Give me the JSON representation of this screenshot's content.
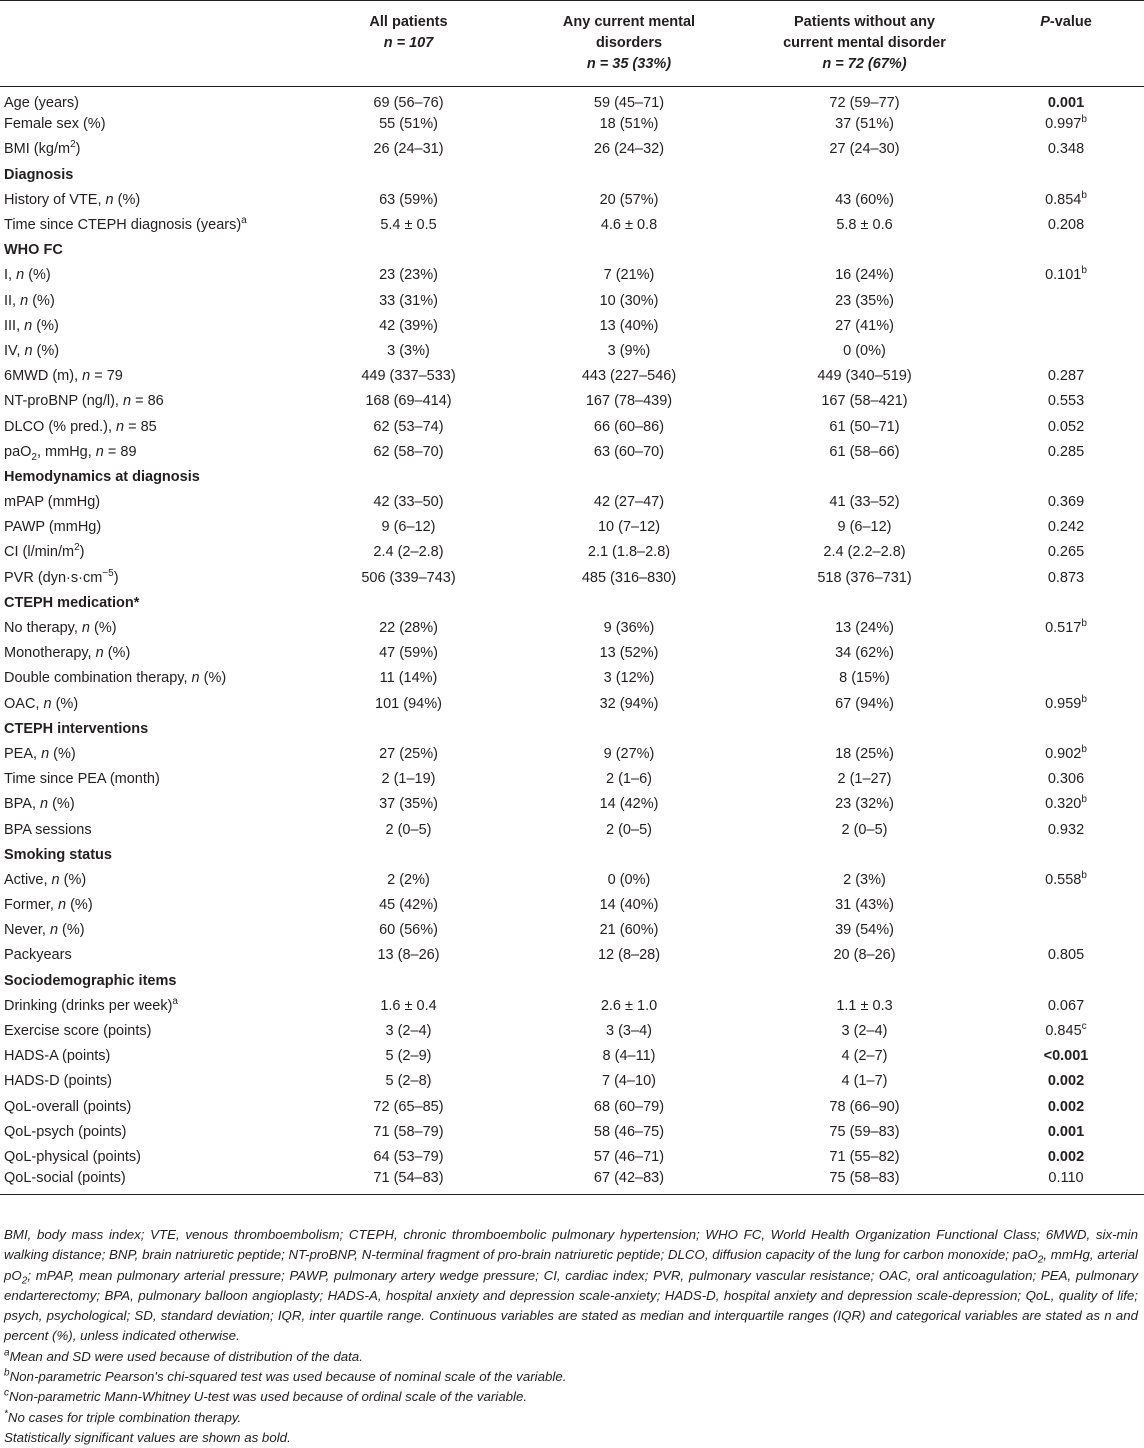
{
  "header": {
    "col1_line1": "All patients",
    "col1_line2": "n = 107",
    "col2_line1": "Any current mental",
    "col2_line2": "disorders",
    "col2_line3": "n = 35 (33%)",
    "col3_line1": "Patients without any",
    "col3_line2": "current mental disorder",
    "col3_line3": "n = 72 (67%)",
    "col4_p": "P",
    "col4_rest": "-value"
  },
  "rows": [
    {
      "label": "Age (years)",
      "all": "69 (56–76)",
      "any": "59 (45–71)",
      "without": "72 (59–77)",
      "p": "0.001",
      "p_bold": true
    },
    {
      "label": "Female sex (%)",
      "all": "55 (51%)",
      "any": "18 (51%)",
      "without": "37 (51%)",
      "p": "0.997",
      "p_sup": "b"
    },
    {
      "label": "BMI (kg/m",
      "label_sup": "2",
      "label_tail": ")",
      "all": "26 (24–31)",
      "any": "26 (24–32)",
      "without": "27 (24–30)",
      "p": "0.348"
    },
    {
      "label": "Diagnosis",
      "section": true
    },
    {
      "label": "History of VTE, ",
      "label_it": "n",
      "label_tail": " (%)",
      "all": "63 (59%)",
      "any": "20 (57%)",
      "without": "43 (60%)",
      "p": "0.854",
      "p_sup": "b"
    },
    {
      "label": "Time since CTEPH diagnosis (years)",
      "label_sup": "a",
      "all": "5.4 ± 0.5",
      "any": "4.6 ± 0.8",
      "without": "5.8 ± 0.6",
      "p": "0.208"
    },
    {
      "label": "WHO FC",
      "section": true
    },
    {
      "label": "I, ",
      "label_it": "n",
      "label_tail": " (%)",
      "all": "23 (23%)",
      "any": "7 (21%)",
      "without": "16 (24%)",
      "p": "0.101",
      "p_sup": "b"
    },
    {
      "label": "II, ",
      "label_it": "n",
      "label_tail": " (%)",
      "all": "33 (31%)",
      "any": "10 (30%)",
      "without": "23 (35%)",
      "p": ""
    },
    {
      "label": "III, ",
      "label_it": "n",
      "label_tail": " (%)",
      "all": "42 (39%)",
      "any": "13 (40%)",
      "without": "27 (41%)",
      "p": ""
    },
    {
      "label": "IV, ",
      "label_it": "n",
      "label_tail": " (%)",
      "all": "3 (3%)",
      "any": "3 (9%)",
      "without": "0 (0%)",
      "p": ""
    },
    {
      "label": "6MWD (m), ",
      "label_it": "n",
      "label_tail": " = 79",
      "all": "449 (337–533)",
      "any": "443 (227–546)",
      "without": "449 (340–519)",
      "p": "0.287"
    },
    {
      "label": "NT-proBNP (ng/l), ",
      "label_it": "n",
      "label_tail": " = 86",
      "all": "168 (69–414)",
      "any": "167 (78–439)",
      "without": "167 (58–421)",
      "p": "0.553"
    },
    {
      "label": "DLCO (% pred.), ",
      "label_it": "n",
      "label_tail": " = 85",
      "all": "62 (53–74)",
      "any": "66 (60–86)",
      "without": "61 (50–71)",
      "p": "0.052"
    },
    {
      "label": "paO",
      "label_sub": "2",
      "label_tail": ", mmHg, ",
      "label_it2": "n",
      "label_tail2": " = 89",
      "all": "62 (58–70)",
      "any": "63 (60–70)",
      "without": "61 (58–66)",
      "p": "0.285"
    },
    {
      "label": "Hemodynamics at diagnosis",
      "section": true
    },
    {
      "label": "mPAP (mmHg)",
      "all": "42 (33–50)",
      "any": "42 (27–47)",
      "without": "41 (33–52)",
      "p": "0.369"
    },
    {
      "label": "PAWP (mmHg)",
      "all": "9 (6–12)",
      "any": "10 (7–12)",
      "without": "9 (6–12)",
      "p": "0.242"
    },
    {
      "label": "CI (l/min/m",
      "label_sup": "2",
      "label_tail": ")",
      "all": "2.4 (2–2.8)",
      "any": "2.1 (1.8–2.8)",
      "without": "2.4 (2.2–2.8)",
      "p": "0.265"
    },
    {
      "label": "PVR (dyn·s·cm",
      "label_sup": "−5",
      "label_tail": ")",
      "all": "506 (339–743)",
      "any": "485 (316–830)",
      "without": "518 (376–731)",
      "p": "0.873"
    },
    {
      "label": "CTEPH medication*",
      "section": true
    },
    {
      "label": "No therapy, ",
      "label_it": "n",
      "label_tail": " (%)",
      "all": "22 (28%)",
      "any": "9 (36%)",
      "without": "13 (24%)",
      "p": "0.517",
      "p_sup": "b"
    },
    {
      "label": "Monotherapy, ",
      "label_it": "n",
      "label_tail": " (%)",
      "all": "47 (59%)",
      "any": "13 (52%)",
      "without": "34 (62%)",
      "p": ""
    },
    {
      "label": "Double combination therapy, ",
      "label_it": "n",
      "label_tail": " (%)",
      "all": "11 (14%)",
      "any": "3 (12%)",
      "without": "8 (15%)",
      "p": ""
    },
    {
      "label": "OAC, ",
      "label_it": "n",
      "label_tail": " (%)",
      "all": "101 (94%)",
      "any": "32 (94%)",
      "without": "67 (94%)",
      "p": "0.959",
      "p_sup": "b"
    },
    {
      "label": "CTEPH interventions",
      "section": true
    },
    {
      "label": "PEA, ",
      "label_it": "n",
      "label_tail": " (%)",
      "all": "27 (25%)",
      "any": "9 (27%)",
      "without": "18 (25%)",
      "p": "0.902",
      "p_sup": "b"
    },
    {
      "label": "Time since PEA (month)",
      "all": "2 (1–19)",
      "any": "2 (1–6)",
      "without": "2 (1–27)",
      "p": "0.306"
    },
    {
      "label": "BPA, ",
      "label_it": "n",
      "label_tail": " (%)",
      "all": "37 (35%)",
      "any": "14 (42%)",
      "without": "23 (32%)",
      "p": "0.320",
      "p_sup": "b"
    },
    {
      "label": "BPA sessions",
      "all": "2 (0–5)",
      "any": "2 (0–5)",
      "without": "2 (0–5)",
      "p": "0.932"
    },
    {
      "label": "Smoking status",
      "section": true
    },
    {
      "label": "Active, ",
      "label_it": "n",
      "label_tail": " (%)",
      "all": "2 (2%)",
      "any": "0 (0%)",
      "without": "2 (3%)",
      "p": "0.558",
      "p_sup": "b"
    },
    {
      "label": "Former, ",
      "label_it": "n",
      "label_tail": " (%)",
      "all": "45 (42%)",
      "any": "14 (40%)",
      "without": "31 (43%)",
      "p": ""
    },
    {
      "label": "Never, ",
      "label_it": "n",
      "label_tail": " (%)",
      "all": "60 (56%)",
      "any": "21 (60%)",
      "without": "39 (54%)",
      "p": ""
    },
    {
      "label": "Packyears",
      "all": "13 (8–26)",
      "any": "12 (8–28)",
      "without": "20 (8–26)",
      "p": "0.805"
    },
    {
      "label": "Sociodemographic items",
      "section": true
    },
    {
      "label": "Drinking (drinks per week)",
      "label_sup": "a",
      "all": "1.6 ± 0.4",
      "any": "2.6 ± 1.0",
      "without": "1.1 ± 0.3",
      "p": "0.067"
    },
    {
      "label": "Exercise score (points)",
      "all": "3 (2–4)",
      "any": "3 (3–4)",
      "without": "3 (2–4)",
      "p": "0.845",
      "p_sup": "c"
    },
    {
      "label": "HADS-A (points)",
      "all": "5 (2–9)",
      "any": "8 (4–11)",
      "without": "4 (2–7)",
      "p": "<0.001",
      "p_bold": true
    },
    {
      "label": "HADS-D (points)",
      "all": "5 (2–8)",
      "any": "7 (4–10)",
      "without": "4 (1–7)",
      "p": "0.002",
      "p_bold": true
    },
    {
      "label": "QoL-overall (points)",
      "all": "72 (65–85)",
      "any": "68 (60–79)",
      "without": "78 (66–90)",
      "p": "0.002",
      "p_bold": true
    },
    {
      "label": "QoL-psych (points)",
      "all": "71 (58–79)",
      "any": "58 (46–75)",
      "without": "75 (59–83)",
      "p": "0.001",
      "p_bold": true
    },
    {
      "label": "QoL-physical (points)",
      "all": "64 (53–79)",
      "any": "57 (46–71)",
      "without": "71 (55–82)",
      "p": "0.002",
      "p_bold": true
    },
    {
      "label": "QoL-social (points)",
      "all": "71 (54–83)",
      "any": "67 (42–83)",
      "without": "75 (58–83)",
      "p": "0.110"
    }
  ],
  "footnotes": {
    "abbr_1": "BMI, body mass index; VTE, venous thromboembolism; CTEPH, chronic thromboembolic pulmonary hypertension; WHO FC, World Health Organization Functional Class; 6MWD, six-min walking distance; BNP, brain natriuretic peptide; NT-proBNP, N-terminal fragment of pro-brain natriuretic peptide; DLCO, diffusion capacity of the lung for carbon monoxide; paO",
    "abbr_sub1": "2",
    "abbr_2": ", mmHg, arterial pO",
    "abbr_sub2": "2",
    "abbr_3": "; mPAP, mean pulmonary arterial pressure; PAWP, pulmonary artery wedge pressure; CI, cardiac index; PVR, pulmonary vascular resistance; OAC, oral anticoagulation; PEA, pulmonary endarterectomy; BPA, pulmonary balloon angioplasty; HADS-A, hospital anxiety and depression scale-anxiety; HADS-D, hospital anxiety and depression scale-depression; QoL, quality of life; psych, psychological; SD, standard deviation; IQR, inter quartile range. Continuous variables are stated as median and interquartile ranges (IQR) and categorical variables are stated as n and percent (%), unless indicated otherwise.",
    "a_mark": "a",
    "a_text": "Mean and SD were used because of distribution of the data.",
    "b_mark": "b",
    "b_text": "Non-parametric Pearson's chi-squared test was used because of nominal scale of the variable.",
    "c_mark": "c",
    "c_text": "Non-parametric Mann-Whitney U-test was used because of ordinal scale of the variable.",
    "star_mark": "*",
    "star_text": "No cases for triple combination therapy.",
    "bold_note": "Statistically significant values are shown as bold."
  }
}
